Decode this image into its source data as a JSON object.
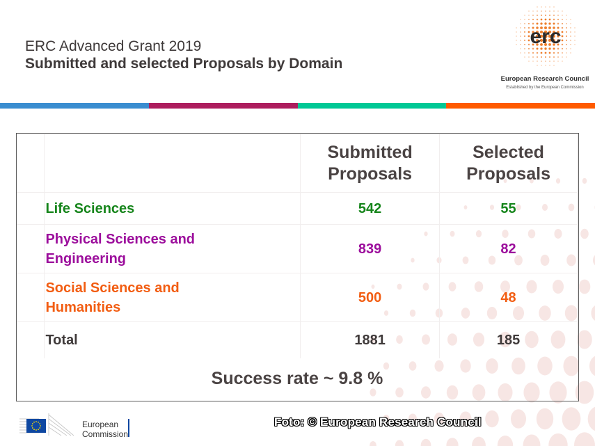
{
  "header": {
    "title": "ERC Advanced Grant 2019",
    "subtitle": "Submitted and selected Proposals by Domain"
  },
  "logo": {
    "mark": "erc",
    "name": "European Research Council",
    "tagline": "Established by the European Commission"
  },
  "color_bar": [
    "#3a8dd0",
    "#ad1d5e",
    "#00c895",
    "#ff5a00"
  ],
  "table": {
    "columns": [
      "",
      "Submitted\nProposals",
      "Selected\nProposals"
    ],
    "column_labels": {
      "submitted_line1": "Submitted",
      "submitted_line2": "Proposals",
      "selected_line1": "Selected",
      "selected_line2": "Proposals"
    },
    "rows": [
      {
        "domain": "Life Sciences",
        "domain_line1": "Life Sciences",
        "domain_line2": "",
        "submitted": "542",
        "selected": "55",
        "color": "#16851b"
      },
      {
        "domain": "Physical Sciences and Engineering",
        "domain_line1": "Physical Sciences and",
        "domain_line2": "Engineering",
        "submitted": "839",
        "selected": "82",
        "color": "#9c0e9c"
      },
      {
        "domain": "Social Sciences and Humanities",
        "domain_line1": "Social Sciences and",
        "domain_line2": "Humanities",
        "submitted": "500",
        "selected": "48",
        "color": "#f25d12"
      }
    ],
    "total": {
      "label": "Total",
      "submitted": "1881",
      "selected": "185"
    }
  },
  "success_rate": "Success rate ~ 9.8 %",
  "footer": {
    "ec_line1": "European",
    "ec_line2": "Commission",
    "credit": "Foto: © European Research Council"
  }
}
